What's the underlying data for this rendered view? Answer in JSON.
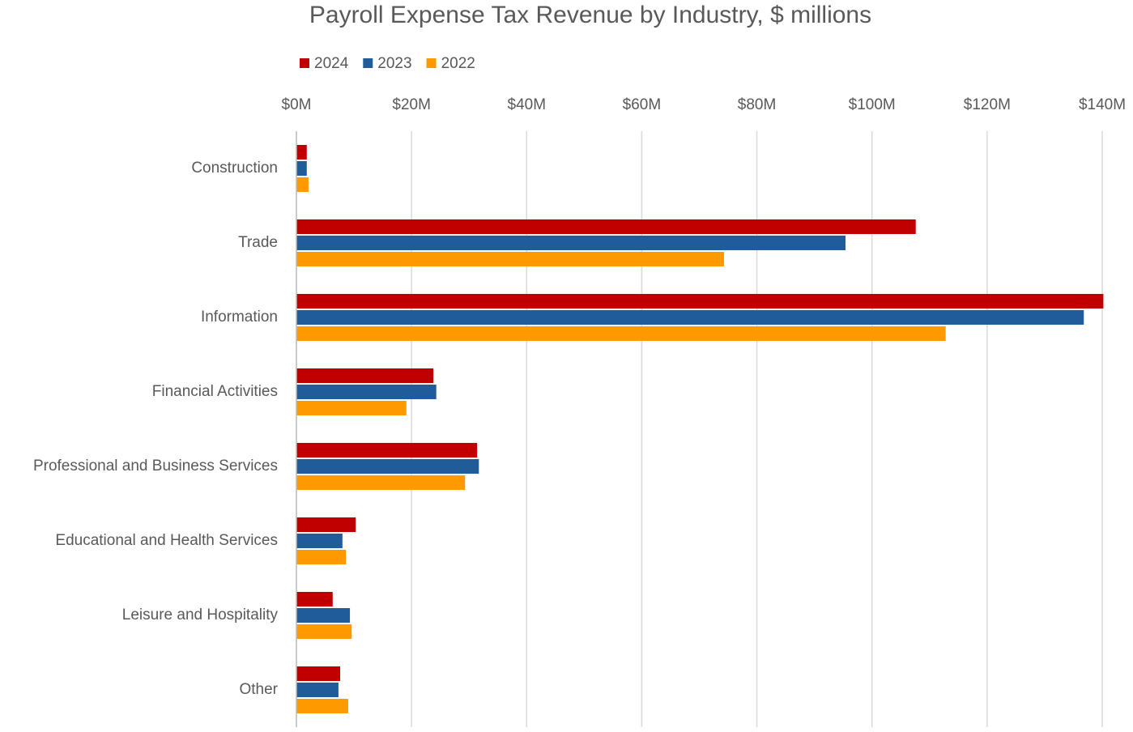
{
  "chart_data": {
    "type": "hbar",
    "title": "Payroll Expense Tax Revenue by Industry, $ millions",
    "categories": [
      "Construction",
      "Trade",
      "Information",
      "Financial Activities",
      "Professional and Business Services",
      "Educational and Health Services",
      "Leisure and Hospitality",
      "Other"
    ],
    "series": [
      {
        "name": "2024",
        "color": "#c00000",
        "values": [
          1.8,
          107.6,
          140.2,
          23.8,
          31.4,
          10.3,
          6.3,
          7.6
        ]
      },
      {
        "name": "2023",
        "color": "#1f5c99",
        "values": [
          1.8,
          95.4,
          136.8,
          24.3,
          31.7,
          8.0,
          9.3,
          7.3
        ]
      },
      {
        "name": "2022",
        "color": "#ff9900",
        "values": [
          2.1,
          74.3,
          112.8,
          19.1,
          29.3,
          8.6,
          9.6,
          9.0
        ]
      }
    ],
    "xlim": [
      0,
      140
    ],
    "xticks": [
      {
        "value": 0,
        "label": "$0M"
      },
      {
        "value": 20,
        "label": "$20M"
      },
      {
        "value": 40,
        "label": "$40M"
      },
      {
        "value": 60,
        "label": "$60M"
      },
      {
        "value": 80,
        "label": "$80M"
      },
      {
        "value": 100,
        "label": "$100M"
      },
      {
        "value": 120,
        "label": "$120M"
      },
      {
        "value": 140,
        "label": "$140M"
      }
    ],
    "grid": true,
    "legend": "top-left"
  }
}
